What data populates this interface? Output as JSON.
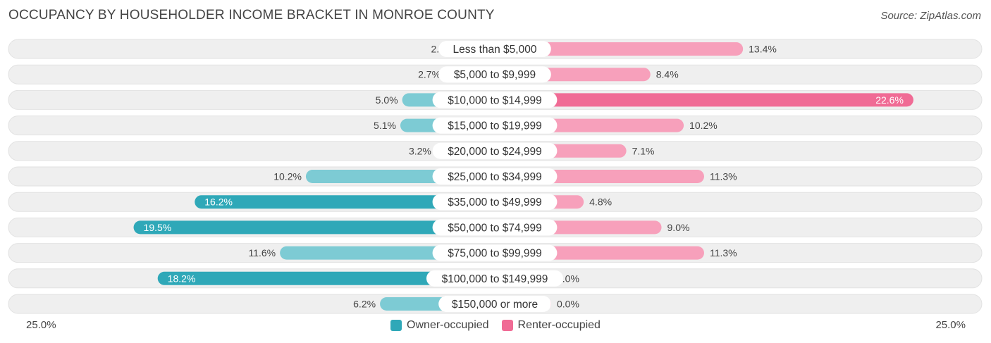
{
  "title": "OCCUPANCY BY HOUSEHOLDER INCOME BRACKET IN MONROE COUNTY",
  "source": "Source: ZipAtlas.com",
  "colors": {
    "owner_strong": "#2fa8b8",
    "owner_light": "#7dcbd4",
    "renter_strong": "#f06b95",
    "renter_light": "#f7a0bb",
    "row_bg": "#efefef"
  },
  "chart_data": {
    "type": "bar",
    "orientation": "horizontal-diverging",
    "categories": [
      "Less than $5,000",
      "$5,000 to $9,999",
      "$10,000 to $14,999",
      "$15,000 to $19,999",
      "$20,000 to $24,999",
      "$25,000 to $34,999",
      "$35,000 to $49,999",
      "$50,000 to $74,999",
      "$75,000 to $99,999",
      "$100,000 to $149,999",
      "$150,000 or more"
    ],
    "series": [
      {
        "name": "Owner-occupied",
        "values": [
          2.0,
          2.7,
          5.0,
          5.1,
          3.2,
          10.2,
          16.2,
          19.5,
          11.6,
          18.2,
          6.2
        ],
        "labels": [
          "2.0%",
          "2.7%",
          "5.0%",
          "5.1%",
          "3.2%",
          "10.2%",
          "16.2%",
          "19.5%",
          "11.6%",
          "18.2%",
          "6.2%"
        ]
      },
      {
        "name": "Renter-occupied",
        "values": [
          13.4,
          8.4,
          22.6,
          10.2,
          7.1,
          11.3,
          4.8,
          9.0,
          11.3,
          2.0,
          0.0
        ],
        "labels": [
          "13.4%",
          "8.4%",
          "22.6%",
          "10.2%",
          "7.1%",
          "11.3%",
          "4.8%",
          "9.0%",
          "11.3%",
          "2.0%",
          "0.0%"
        ]
      }
    ],
    "xlim": [
      -25.0,
      25.0
    ],
    "axis_min_label": "25.0%",
    "axis_max_label": "25.0%",
    "legend_position": "bottom-center"
  }
}
